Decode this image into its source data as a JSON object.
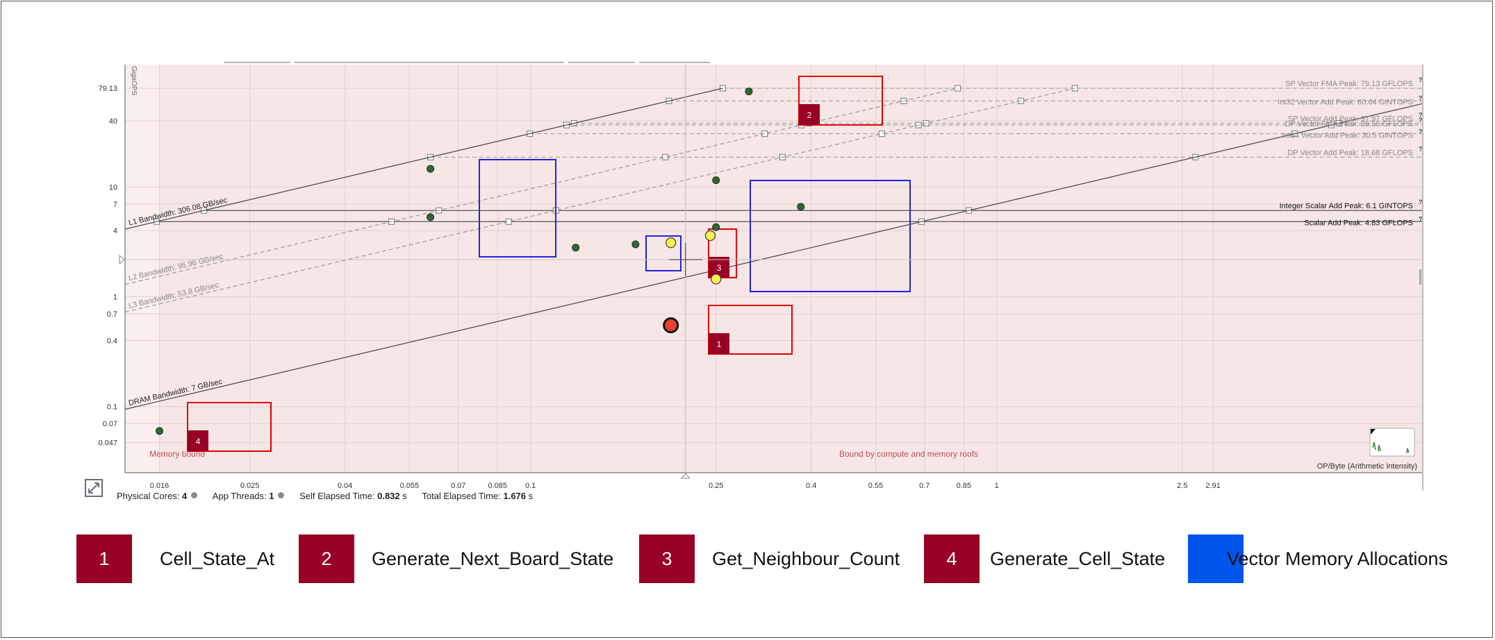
{
  "chart_data": {
    "type": "scatter",
    "title": "",
    "xlabel": "OP/Byte (Arithmetic Intensity)",
    "ylabel": "GigaOPS",
    "xscale": "log",
    "yscale": "log",
    "xlim": [
      0.0135,
      8.2
    ],
    "ylim": [
      0.025,
      130
    ],
    "x_ticks": [
      0.016,
      0.025,
      0.04,
      0.055,
      0.07,
      0.085,
      0.1,
      0.25,
      0.4,
      0.55,
      0.7,
      0.85,
      1,
      2.5,
      2.91
    ],
    "y_ticks": [
      0.047,
      0.07,
      0.1,
      0.4,
      0.7,
      1,
      4,
      7,
      10,
      40,
      79.13
    ],
    "grid": true,
    "roofs": [
      {
        "name": "SP Vector FMA Peak: 79.13 GFLOPS",
        "value": 79.13
      },
      {
        "name": "Int32 Vector Add Peak: 60.64 GINTOPS",
        "value": 60.64
      },
      {
        "name": "SP Vector Add Peak: 37.97 GFLOPS",
        "value": 37.97
      },
      {
        "name": "DP Vector FMA Peak: 36.56 GFLOPS",
        "value": 36.56
      },
      {
        "name": "Int64 Vector Add Peak: 30.5 GINTOPS",
        "value": 30.5
      },
      {
        "name": "DP Vector Add Peak: 18.68 GFLOPS",
        "value": 18.68
      },
      {
        "name": "Integer Scalar Add Peak: 6.1 GINTOPS",
        "value": 6.1
      },
      {
        "name": "Scalar Add Peak: 4.83 GFLOPS",
        "value": 4.83
      }
    ],
    "bandwidths": [
      {
        "name": "L1 Bandwidth: 306.08 GB/sec",
        "value": 306.08
      },
      {
        "name": "L2 Bandwidth: 95.96 GB/sec",
        "value": 95.96
      },
      {
        "name": "L3 Bandwidth: 53.8 GB/sec",
        "value": 53.8
      },
      {
        "name": "DRAM Bandwidth: 7 GB/sec",
        "value": 7
      }
    ],
    "points": [
      {
        "x": 0.016,
        "y": 0.06,
        "color": "green"
      },
      {
        "x": 0.061,
        "y": 14.6,
        "color": "green"
      },
      {
        "x": 0.061,
        "y": 5.3,
        "color": "green"
      },
      {
        "x": 0.125,
        "y": 2.8,
        "color": "green"
      },
      {
        "x": 0.168,
        "y": 3.0,
        "color": "green"
      },
      {
        "x": 0.294,
        "y": 74,
        "color": "green"
      },
      {
        "x": 0.25,
        "y": 11.5,
        "color": "green"
      },
      {
        "x": 0.38,
        "y": 6.6,
        "color": "green"
      },
      {
        "x": 0.25,
        "y": 4.3,
        "color": "green"
      },
      {
        "x": 0.2,
        "y": 3.1,
        "color": "yellow"
      },
      {
        "x": 0.243,
        "y": 3.6,
        "color": "yellow"
      },
      {
        "x": 0.25,
        "y": 1.45,
        "color": "yellow"
      },
      {
        "x": 0.2,
        "y": 0.55,
        "color": "red"
      }
    ],
    "regions": [
      {
        "label": "Memory bound"
      },
      {
        "label": "Bound by compute and memory roofs"
      }
    ],
    "annotations": [
      {
        "label": "1",
        "kind": "red"
      },
      {
        "label": "2",
        "kind": "red"
      },
      {
        "label": "3",
        "kind": "red"
      },
      {
        "label": "4",
        "kind": "red"
      },
      {
        "kind": "blue"
      },
      {
        "kind": "blue"
      },
      {
        "kind": "blue"
      }
    ]
  },
  "stats": {
    "physical_cores_label": "Physical Cores:",
    "physical_cores": "4",
    "app_threads_label": "App Threads:",
    "app_threads": "1",
    "self_elapsed_label": "Self Elapsed Time:",
    "self_elapsed": "0.832",
    "total_elapsed_label": "Total Elapsed Time:",
    "total_elapsed": "1.676",
    "seconds_unit": "s"
  },
  "legend": [
    {
      "number": "1",
      "label": "Cell_State_At"
    },
    {
      "number": "2",
      "label": "Generate_Next_Board_State"
    },
    {
      "number": "3",
      "label": "Get_Neighbour_Count"
    },
    {
      "number": "4",
      "label": "Generate_Cell_State"
    }
  ],
  "legend_blue_label": "Vector Memory Allocations",
  "colors": {
    "red_marker": "#990025",
    "red_outline": "#e00000",
    "blue_outline": "#2222dd",
    "legend_blue": "#0055ee",
    "plot_bg": "#f6e6e6",
    "point_green": "#336633",
    "point_yellow": "#f5f050",
    "point_red": "#e84030"
  }
}
